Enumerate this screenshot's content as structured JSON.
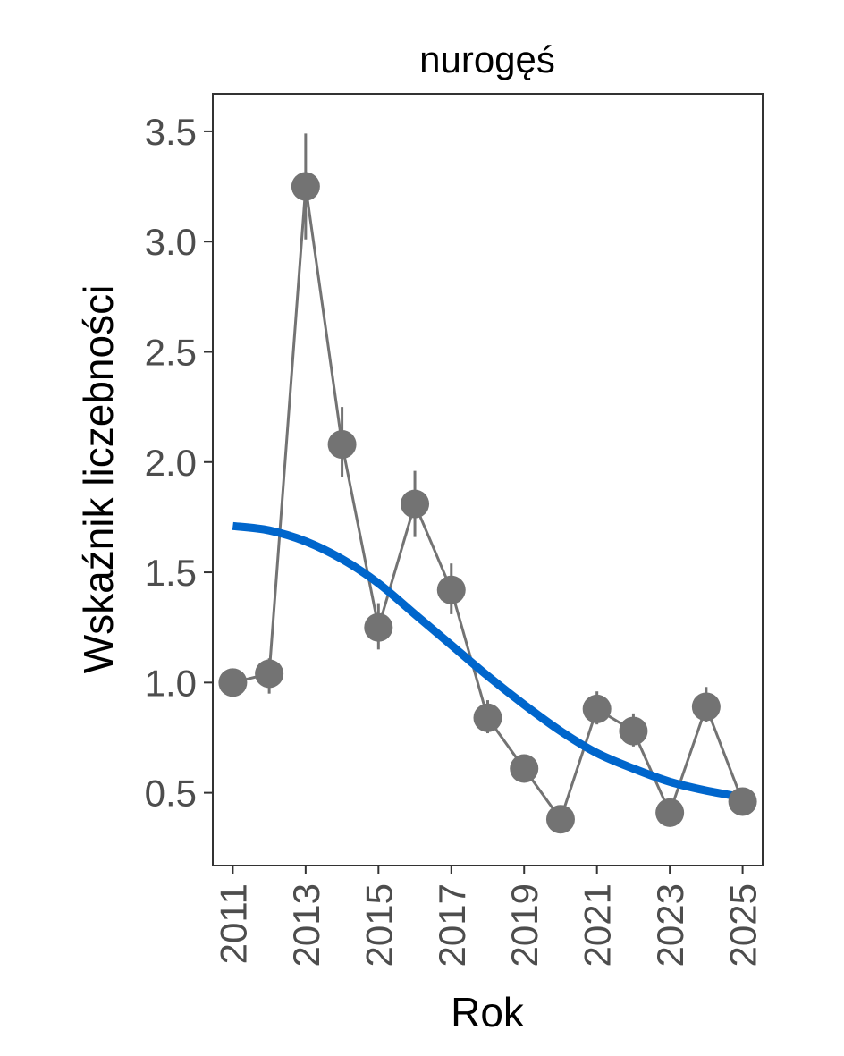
{
  "chart_data": {
    "type": "line",
    "title": "nurogęś",
    "xlabel": "Rok",
    "ylabel": "Wskaźnik liczebności",
    "xlim": [
      2010.45,
      2025.55
    ],
    "ylim": [
      0.17,
      3.67
    ],
    "x_ticks": [
      "2011",
      "2013",
      "2015",
      "2017",
      "2019",
      "2021",
      "2023",
      "2025"
    ],
    "y_ticks": [
      "0.5",
      "1.0",
      "1.5",
      "2.0",
      "2.5",
      "3.0",
      "3.5"
    ],
    "grid": false,
    "series": [
      {
        "type": "line-points-errorbars",
        "x": [
          2011,
          2012,
          2013,
          2014,
          2015,
          2016,
          2017,
          2018,
          2019,
          2020,
          2021,
          2022,
          2023,
          2024,
          2025
        ],
        "values": [
          1.0,
          1.04,
          3.25,
          2.08,
          1.25,
          1.81,
          1.42,
          0.84,
          0.61,
          0.38,
          0.88,
          0.78,
          0.41,
          0.89,
          0.46
        ],
        "lower": [
          1.0,
          0.95,
          3.01,
          1.93,
          1.15,
          1.66,
          1.31,
          0.77,
          0.57,
          0.35,
          0.81,
          0.71,
          0.38,
          0.82,
          0.43
        ],
        "upper": [
          1.0,
          1.11,
          3.49,
          2.25,
          1.36,
          1.96,
          1.54,
          0.92,
          0.65,
          0.41,
          0.96,
          0.86,
          0.44,
          0.98,
          0.49
        ],
        "color": "#737373"
      },
      {
        "type": "trend",
        "x": [
          2011,
          2012,
          2013,
          2014,
          2015,
          2016,
          2017,
          2018,
          2019,
          2020,
          2021,
          2022,
          2023,
          2024,
          2025
        ],
        "values": [
          1.71,
          1.69,
          1.64,
          1.56,
          1.45,
          1.31,
          1.17,
          1.03,
          0.9,
          0.78,
          0.68,
          0.61,
          0.55,
          0.51,
          0.48
        ],
        "color": "#0066CC"
      }
    ]
  }
}
